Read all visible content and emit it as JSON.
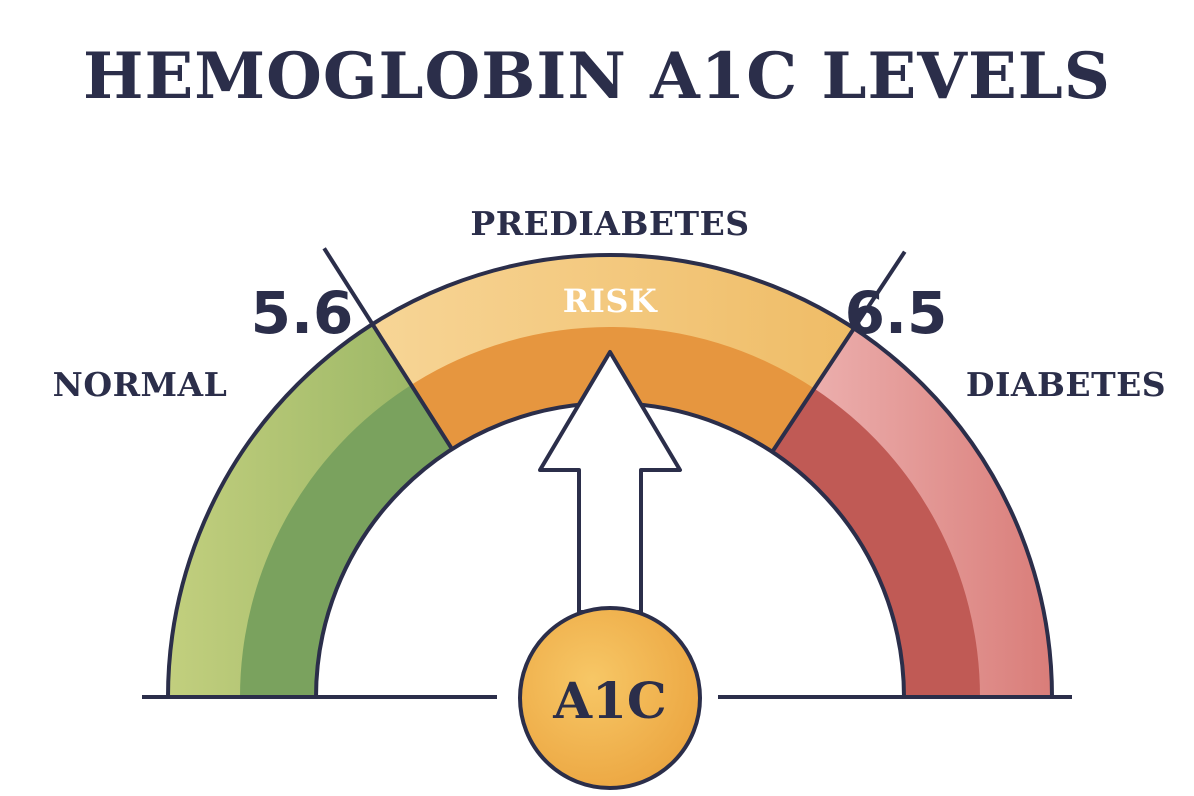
{
  "title": "HEMOGLOBIN A1C LEVELS",
  "gauge": {
    "segments": [
      {
        "label": "NORMAL",
        "band_text": "",
        "outer": "#b3c571",
        "inner": "#7aa25e"
      },
      {
        "label": "PREDIABETES",
        "band_text": "RISK",
        "outer": "#f2c77e",
        "inner": "#e6963f"
      },
      {
        "label": "DIABETES",
        "band_text": "",
        "outer": "#e8a5a3",
        "inner": "#c05a55"
      }
    ],
    "thresholds": [
      "5.6",
      "6.5"
    ],
    "hub_label": "A1C",
    "colors": {
      "outline": "#2b2e4a",
      "hub_fill": "#f0b04d",
      "pointer_fill": "#ffffff"
    }
  }
}
